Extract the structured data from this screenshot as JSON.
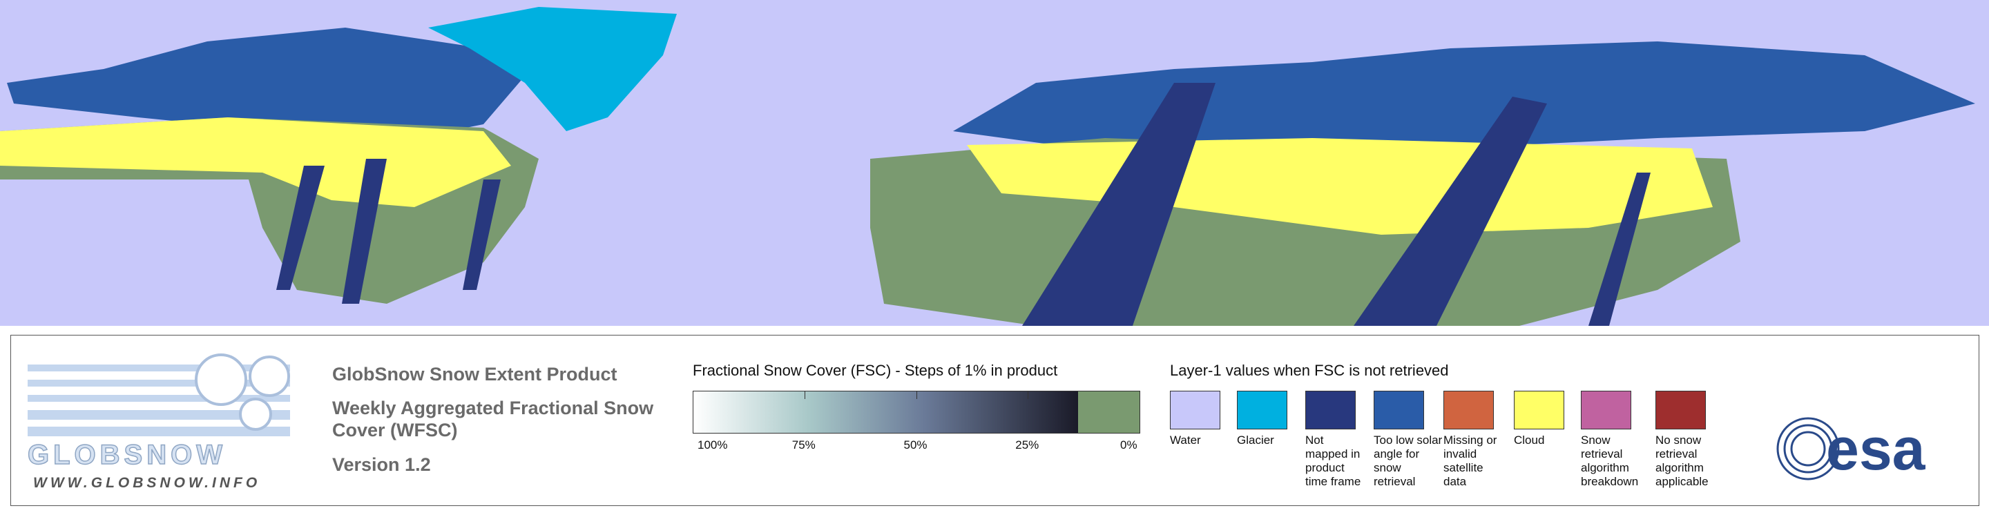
{
  "product": {
    "title": "GlobSnow Snow Extent Product",
    "subtitle_lines": [
      "Weekly Aggregated Fractional Snow",
      "Cover (WFSC)"
    ],
    "version": "Version 1.2"
  },
  "logo": {
    "name": "GLOBSNOW",
    "url": "WWW.GLOBSNOW.INFO",
    "agency": "esa"
  },
  "colorbar": {
    "title": "Fractional Snow Cover (FSC) - Steps of 1% in product",
    "tick_labels": [
      "100%",
      "75%",
      "50%",
      "25%",
      "0%"
    ]
  },
  "legend": {
    "title": "Layer-1 values when FSC is not retrieved",
    "items": [
      {
        "label": "Water",
        "color": "#c8c8fa"
      },
      {
        "label": "Glacier",
        "color": "#00b0e0"
      },
      {
        "label": "Not mapped in product time frame",
        "color": "#28387e"
      },
      {
        "label": "Too low solar angle for snow retrieval",
        "color": "#2a5ca8"
      },
      {
        "label": "Missing or invalid satellite data",
        "color": "#d06440"
      },
      {
        "label": "Cloud",
        "color": "#ffff66"
      },
      {
        "label": "Snow retrieval algorithm breakdown",
        "color": "#c062a0"
      },
      {
        "label": "No snow retrieval algorithm applicable",
        "color": "#9e2e2e"
      }
    ]
  }
}
